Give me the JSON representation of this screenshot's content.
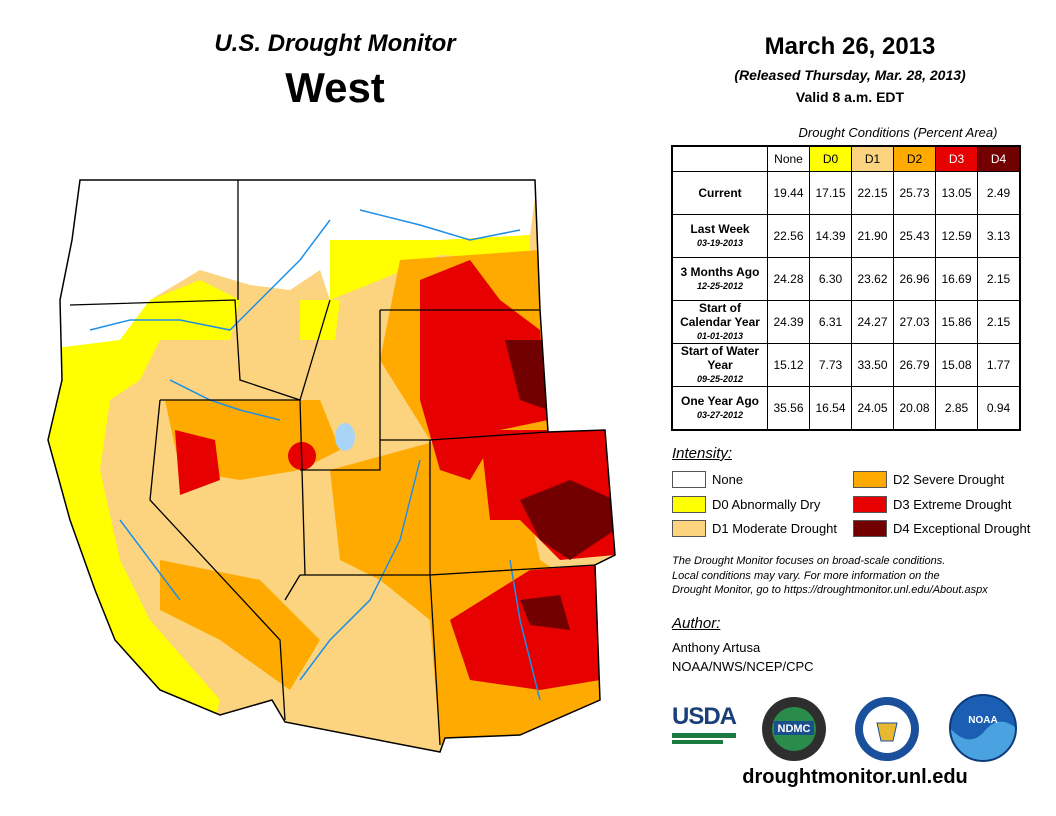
{
  "header": {
    "title": "U.S. Drought Monitor",
    "region": "West",
    "date": "March 26, 2013",
    "released": "(Released Thursday, Mar. 28, 2013)",
    "valid": "Valid 8 a.m. EDT"
  },
  "table": {
    "caption": "Drought Conditions (Percent Area)",
    "columns": [
      "None",
      "D0",
      "D1",
      "D2",
      "D3",
      "D4"
    ],
    "rows": [
      {
        "label": "Current",
        "date": "",
        "values": [
          "19.44",
          "17.15",
          "22.15",
          "25.73",
          "13.05",
          "2.49"
        ]
      },
      {
        "label": "Last Week",
        "date": "03-19-2013",
        "values": [
          "22.56",
          "14.39",
          "21.90",
          "25.43",
          "12.59",
          "3.13"
        ]
      },
      {
        "label": "3 Months Ago",
        "date": "12-25-2012",
        "values": [
          "24.28",
          "6.30",
          "23.62",
          "26.96",
          "16.69",
          "2.15"
        ]
      },
      {
        "label": "Start of Calendar Year",
        "date": "01-01-2013",
        "values": [
          "24.39",
          "6.31",
          "24.27",
          "27.03",
          "15.86",
          "2.15"
        ]
      },
      {
        "label": "Start of Water Year",
        "date": "09-25-2012",
        "values": [
          "15.12",
          "7.73",
          "33.50",
          "26.79",
          "15.08",
          "1.77"
        ]
      },
      {
        "label": "One Year Ago",
        "date": "03-27-2012",
        "values": [
          "35.56",
          "16.54",
          "24.05",
          "20.08",
          "2.85",
          "0.94"
        ]
      }
    ]
  },
  "colors": {
    "none": "#ffffff",
    "d0": "#ffff00",
    "d1": "#fcd37f",
    "d2": "#ffaa00",
    "d3": "#e60000",
    "d4": "#730000",
    "water": "#1e8fe6"
  },
  "legend": {
    "title": "Intensity:",
    "items": [
      "None",
      "D0 Abnormally Dry",
      "D1 Moderate Drought",
      "D2 Severe Drought",
      "D3 Extreme Drought",
      "D4 Exceptional Drought"
    ]
  },
  "note": [
    "The Drought Monitor focuses on broad-scale conditions.",
    "Local conditions may vary. For more information on the",
    "Drought Monitor, go to https://droughtmonitor.unl.edu/About.aspx"
  ],
  "author": {
    "label": "Author:",
    "name": "Anthony Artusa",
    "org": "NOAA/NWS/NCEP/CPC"
  },
  "logos": {
    "usda": "USDA",
    "ndmc": "NDMC",
    "noaa": "NOAA"
  },
  "footer": {
    "url": "droughtmonitor.unl.edu"
  }
}
